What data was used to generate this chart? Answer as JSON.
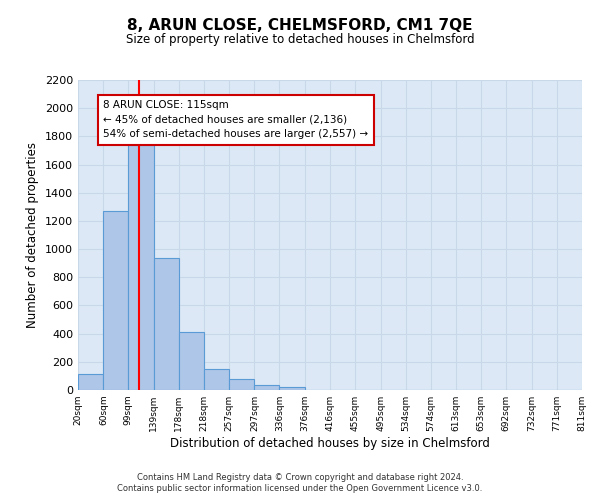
{
  "title": "8, ARUN CLOSE, CHELMSFORD, CM1 7QE",
  "subtitle": "Size of property relative to detached houses in Chelmsford",
  "bar_edges": [
    20,
    60,
    99,
    139,
    178,
    218,
    257,
    297,
    336,
    376,
    416,
    455,
    495,
    534,
    574,
    613,
    653,
    692,
    732,
    771,
    811
  ],
  "bar_heights": [
    115,
    1270,
    1740,
    940,
    415,
    150,
    75,
    35,
    20,
    0,
    0,
    0,
    0,
    0,
    0,
    0,
    0,
    0,
    0,
    0
  ],
  "bar_color": "#aec6e8",
  "bar_edge_color": "#5b9bd5",
  "red_line_x": 115,
  "xlabel": "Distribution of detached houses by size in Chelmsford",
  "ylabel": "Number of detached properties",
  "ylim": [
    0,
    2200
  ],
  "yticks": [
    0,
    200,
    400,
    600,
    800,
    1000,
    1200,
    1400,
    1600,
    1800,
    2000,
    2200
  ],
  "xtick_labels": [
    "20sqm",
    "60sqm",
    "99sqm",
    "139sqm",
    "178sqm",
    "218sqm",
    "257sqm",
    "297sqm",
    "336sqm",
    "376sqm",
    "416sqm",
    "455sqm",
    "495sqm",
    "534sqm",
    "574sqm",
    "613sqm",
    "653sqm",
    "692sqm",
    "732sqm",
    "771sqm",
    "811sqm"
  ],
  "annotation_title": "8 ARUN CLOSE: 115sqm",
  "annotation_line1": "← 45% of detached houses are smaller (2,136)",
  "annotation_line2": "54% of semi-detached houses are larger (2,557) →",
  "bg_color": "#ffffff",
  "grid_color": "#c8d8e8",
  "ax_bg_color": "#dce8f5",
  "footer1": "Contains HM Land Registry data © Crown copyright and database right 2024.",
  "footer2": "Contains public sector information licensed under the Open Government Licence v3.0."
}
